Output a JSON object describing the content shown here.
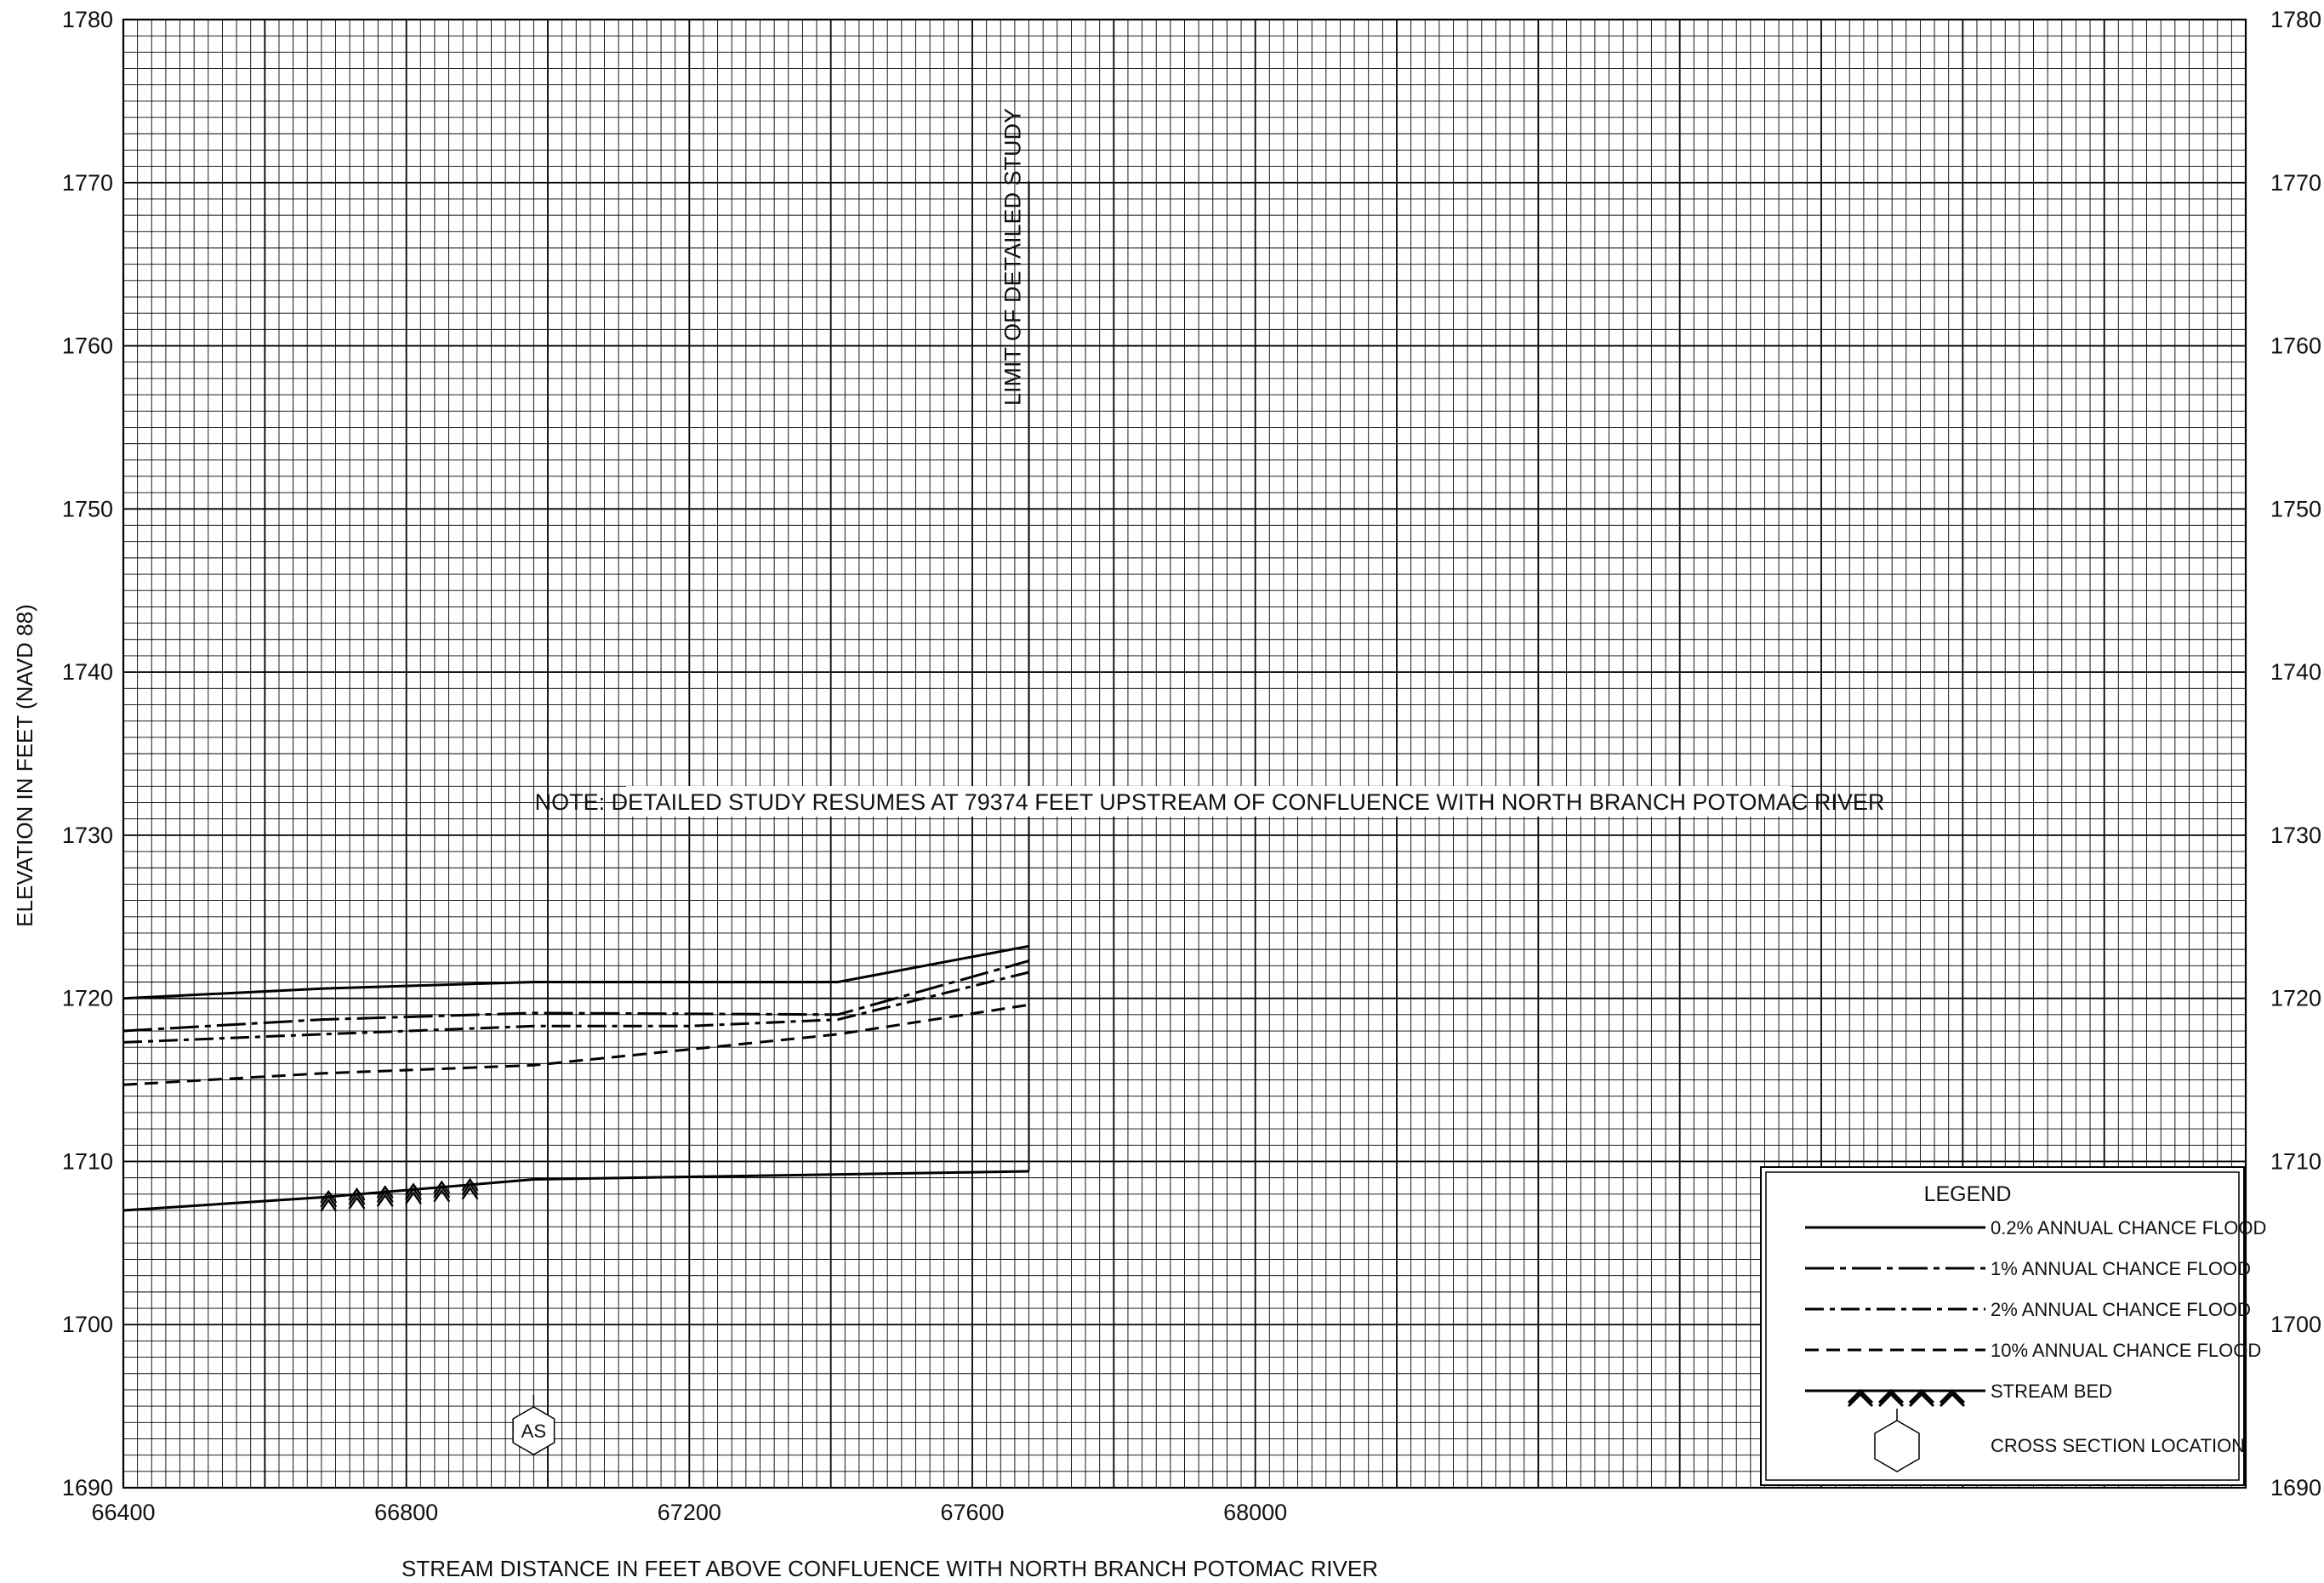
{
  "chart_data": {
    "type": "line",
    "xlabel": "STREAM DISTANCE IN FEET ABOVE CONFLUENCE WITH NORTH BRANCH POTOMAC RIVER",
    "ylabel": "ELEVATION IN FEET (NAVD 88)",
    "xlim": [
      66400,
      69400
    ],
    "ylim": [
      1690,
      1780
    ],
    "x_ticks": [
      66400,
      66800,
      67200,
      67600,
      68000
    ],
    "y_ticks": [
      1690,
      1700,
      1710,
      1720,
      1730,
      1740,
      1750,
      1760,
      1770,
      1780
    ],
    "x_tick_labels": [
      "66400",
      "66800",
      "67200",
      "67600",
      "68000"
    ],
    "y_tick_labels": [
      "1690",
      "1700",
      "1710",
      "1720",
      "1730",
      "1740",
      "1750",
      "1760",
      "1770",
      "1780"
    ],
    "grid": true,
    "series": [
      {
        "name": "0.2% ANNUAL CHANCE FLOOD",
        "style": "solid",
        "x": [
          66400,
          66680,
          66980,
          67410,
          67680
        ],
        "y": [
          1720.0,
          1720.6,
          1721.0,
          1721.0,
          1723.2
        ]
      },
      {
        "name": "1% ANNUAL CHANCE FLOOD",
        "style": "long-dash-dot",
        "x": [
          66400,
          66680,
          66980,
          67410,
          67680
        ],
        "y": [
          1718.0,
          1718.7,
          1719.1,
          1719.0,
          1722.3
        ]
      },
      {
        "name": "2% ANNUAL CHANCE FLOOD",
        "style": "dash-dot",
        "x": [
          66400,
          66680,
          66980,
          67200,
          67410,
          67680
        ],
        "y": [
          1717.3,
          1717.8,
          1718.3,
          1718.3,
          1718.7,
          1721.6
        ]
      },
      {
        "name": "10% ANNUAL CHANCE FLOOD",
        "style": "dashed",
        "x": [
          66400,
          66680,
          66980,
          67410,
          67680
        ],
        "y": [
          1714.7,
          1715.4,
          1715.9,
          1717.8,
          1719.6
        ]
      },
      {
        "name": "STREAM BED",
        "style": "solid",
        "x": [
          66400,
          66680,
          66980,
          67680
        ],
        "y": [
          1707.0,
          1707.8,
          1708.9,
          1709.4
        ]
      }
    ],
    "cross_sections": [
      {
        "label": "AS",
        "x": 66980
      }
    ],
    "annotations": {
      "limit_label": "LIMIT OF DETAILED STUDY",
      "limit_x": 67680,
      "note": "NOTE: DETAILED STUDY RESUMES AT 79374 FEET UPSTREAM OF CONFLUENCE WITH NORTH BRANCH POTOMAC RIVER"
    },
    "legend": {
      "title": "LEGEND",
      "position": "bottom-right",
      "entries": [
        {
          "label": "0.2% ANNUAL CHANCE FLOOD",
          "style": "solid"
        },
        {
          "label": "1% ANNUAL CHANCE FLOOD",
          "style": "long-dash-dot"
        },
        {
          "label": "2% ANNUAL CHANCE FLOOD",
          "style": "dash-dot"
        },
        {
          "label": "10% ANNUAL CHANCE FLOOD",
          "style": "dashed"
        },
        {
          "label": "STREAM BED",
          "style": "stream-bed"
        },
        {
          "label": "CROSS SECTION LOCATION",
          "style": "hexagon"
        }
      ]
    }
  }
}
